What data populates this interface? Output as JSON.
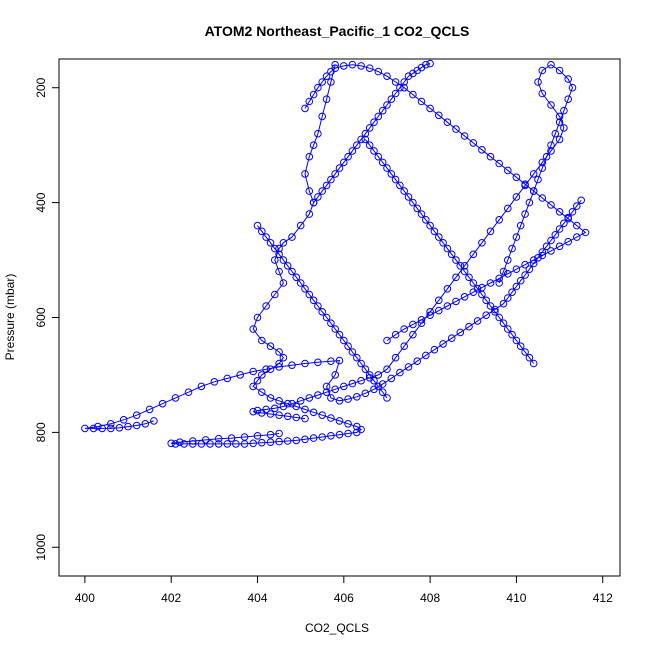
{
  "chart_data": {
    "type": "scatter",
    "title": "ATOM2 Northeast_Pacific_1 CO2_QCLS",
    "xlabel": "CO2_QCLS",
    "ylabel": "Pressure (mbar)",
    "xlim": [
      399.4,
      412.4
    ],
    "ylim": [
      1050,
      150
    ],
    "y_reversed": true,
    "x_ticks": [
      400,
      402,
      404,
      406,
      408,
      410,
      412
    ],
    "y_ticks": [
      200,
      400,
      600,
      800,
      1000
    ],
    "grid": false,
    "legend": "none",
    "marker": "open-circle",
    "connect_points": true,
    "color": "#0000ff",
    "series": [
      {
        "x": [
          405.8,
          405.7,
          405.6,
          405.5,
          405.4,
          405.3,
          405.2,
          405.1,
          405.2,
          405.3,
          405.2,
          405.0,
          404.8,
          404.6,
          404.5,
          404.4,
          404.5,
          404.6,
          404.4,
          404.2,
          404.0,
          403.9,
          404.1,
          404.3,
          404.5,
          404.6,
          404.5,
          404.3,
          404.1,
          404.0,
          403.9,
          404.1,
          404.3,
          404.5,
          404.7,
          404.9,
          405.1,
          405.3,
          405.5,
          405.7,
          405.9,
          406.1,
          406.3,
          406.4,
          406.3,
          406.1,
          405.9,
          405.7,
          405.5,
          405.3,
          405.1,
          404.9,
          404.7,
          404.5,
          404.3,
          404.1,
          403.9,
          403.7,
          403.5,
          403.3,
          403.1,
          402.9,
          402.7,
          402.5,
          402.3,
          402.1,
          402.0,
          402.2,
          402.5,
          402.8,
          403.1,
          403.4,
          403.7,
          404.0,
          404.3,
          404.5
        ],
        "y": [
          160,
          190,
          220,
          250,
          280,
          300,
          320,
          350,
          380,
          400,
          420,
          440,
          460,
          470,
          480,
          500,
          520,
          540,
          560,
          580,
          600,
          620,
          640,
          650,
          660,
          670,
          680,
          690,
          700,
          710,
          720,
          730,
          740,
          745,
          750,
          755,
          760,
          765,
          770,
          775,
          780,
          785,
          790,
          795,
          800,
          802,
          804,
          806,
          808,
          810,
          812,
          814,
          815,
          816,
          817,
          818,
          819,
          820,
          820,
          820,
          820,
          820,
          820,
          820,
          820,
          820,
          819,
          817,
          815,
          813,
          811,
          810,
          808,
          806,
          804,
          802
        ]
      },
      {
        "x": [
          401.6,
          401.4,
          401.2,
          401.0,
          400.8,
          400.6,
          400.4,
          400.2,
          400.0,
          400.3,
          400.6,
          400.9,
          401.2,
          401.5,
          401.8,
          402.1,
          402.4,
          402.7,
          403.0,
          403.3,
          403.6,
          403.9,
          404.2,
          404.5,
          404.8,
          405.1,
          405.4,
          405.7,
          405.9,
          405.8,
          405.6,
          405.7,
          405.9,
          406.1,
          406.3,
          406.5,
          406.7,
          406.9,
          407.1,
          407.3,
          407.5,
          407.7,
          407.9,
          408.1,
          408.3,
          408.5,
          408.7,
          408.9,
          409.1,
          409.3,
          409.5,
          409.7,
          409.8,
          409.9,
          410.0,
          410.1,
          410.2,
          410.3,
          410.4,
          410.5,
          410.6,
          410.7,
          410.8,
          410.9,
          411.0,
          411.1,
          411.2,
          411.3,
          411.4,
          411.5
        ],
        "y": [
          780,
          785,
          788,
          790,
          792,
          793,
          793,
          793,
          793,
          790,
          785,
          778,
          770,
          760,
          750,
          740,
          730,
          720,
          712,
          706,
          700,
          694,
          690,
          686,
          683,
          680,
          678,
          676,
          675,
          700,
          720,
          740,
          745,
          742,
          738,
          732,
          725,
          716,
          706,
          696,
          686,
          676,
          666,
          656,
          646,
          636,
          626,
          616,
          606,
          596,
          586,
          576,
          566,
          556,
          546,
          536,
          526,
          516,
          506,
          496,
          486,
          476,
          466,
          456,
          446,
          436,
          426,
          416,
          406,
          396
        ]
      },
      {
        "x": [
          409.6,
          409.7,
          409.8,
          409.9,
          410.0,
          410.1,
          410.2,
          410.3,
          410.4,
          410.5,
          410.6,
          410.7,
          410.8,
          410.9,
          411.0,
          411.1,
          411.2,
          411.3,
          411.2,
          411.0,
          410.8,
          410.6,
          410.5,
          410.6,
          410.8,
          411.0,
          411.1,
          411.0,
          410.8,
          410.6,
          410.4,
          410.2,
          410.0,
          409.8,
          409.6,
          409.4,
          409.2,
          409.0,
          408.8,
          408.6,
          408.4,
          408.2,
          408.0,
          407.8,
          407.6,
          407.4,
          407.2,
          407.0,
          406.8,
          406.6,
          406.4,
          406.2,
          406.0,
          405.8,
          405.6,
          405.4,
          405.2,
          405.0,
          404.8,
          404.6,
          404.4,
          404.2,
          404.0,
          403.9,
          404.1,
          404.3,
          404.5,
          404.7,
          404.9,
          405.1
        ],
        "y": [
          540,
          520,
          500,
          480,
          460,
          440,
          420,
          400,
          380,
          360,
          340,
          320,
          300,
          280,
          260,
          240,
          220,
          200,
          185,
          170,
          160,
          170,
          190,
          210,
          230,
          250,
          270,
          290,
          310,
          330,
          350,
          370,
          390,
          410,
          430,
          450,
          470,
          490,
          510,
          530,
          550,
          570,
          590,
          610,
          630,
          650,
          670,
          690,
          700,
          705,
          710,
          715,
          720,
          725,
          730,
          735,
          740,
          745,
          750,
          755,
          758,
          760,
          762,
          764,
          766,
          768,
          770,
          772,
          774,
          776
        ]
      },
      {
        "x": [
          407.0,
          407.2,
          407.4,
          407.6,
          407.8,
          408.0,
          408.2,
          408.4,
          408.6,
          408.8,
          409.0,
          409.2,
          409.4,
          409.6,
          409.8,
          410.0,
          410.2,
          410.4,
          410.6,
          410.8,
          411.0,
          411.2,
          411.4,
          411.6,
          411.4,
          411.2,
          411.0,
          410.8,
          410.6,
          410.4,
          410.2,
          410.0,
          409.8,
          409.6,
          409.4,
          409.2,
          409.0,
          408.8,
          408.6,
          408.4,
          408.2,
          408.0,
          407.8,
          407.6,
          407.4,
          407.2,
          407.0,
          406.8,
          406.6,
          406.4,
          406.2,
          406.0,
          405.8,
          405.7,
          405.6,
          405.5,
          405.4,
          405.3,
          405.2,
          405.1
        ],
        "y": [
          640,
          630,
          620,
          612,
          604,
          596,
          588,
          580,
          572,
          564,
          556,
          548,
          540,
          532,
          524,
          516,
          508,
          500,
          492,
          484,
          476,
          468,
          460,
          452,
          440,
          428,
          416,
          404,
          392,
          380,
          368,
          356,
          344,
          332,
          320,
          308,
          296,
          284,
          272,
          260,
          248,
          236,
          224,
          212,
          200,
          190,
          180,
          172,
          166,
          162,
          160,
          162,
          166,
          172,
          180,
          190,
          200,
          212,
          224,
          236
        ]
      },
      {
        "x": [
          406.5,
          406.6,
          406.7,
          406.8,
          406.9,
          407.0,
          407.1,
          407.2,
          407.3,
          407.4,
          407.5,
          407.6,
          407.7,
          407.8,
          407.9,
          408.0,
          408.1,
          408.2,
          408.3,
          408.4,
          408.5,
          408.6,
          408.7,
          408.8,
          408.9,
          409.0,
          409.1,
          409.2,
          409.3,
          409.4,
          409.5,
          409.6,
          409.7,
          409.8,
          409.9,
          410.0,
          410.1,
          410.2,
          410.3,
          410.4
        ],
        "y": [
          290,
          300,
          310,
          320,
          330,
          340,
          350,
          360,
          370,
          380,
          390,
          400,
          410,
          420,
          430,
          440,
          450,
          460,
          470,
          480,
          490,
          500,
          510,
          520,
          530,
          540,
          550,
          560,
          570,
          580,
          590,
          600,
          610,
          620,
          630,
          640,
          650,
          660,
          670,
          680
        ]
      },
      {
        "x": [
          404.0,
          404.1,
          404.2,
          404.3,
          404.4,
          404.5,
          404.6,
          404.7,
          404.8,
          404.9,
          405.0,
          405.1,
          405.2,
          405.3,
          405.4,
          405.5,
          405.6,
          405.7,
          405.8,
          405.9,
          406.0,
          406.1,
          406.2,
          406.3,
          406.4,
          406.5,
          406.6,
          406.7,
          406.8,
          406.9,
          407.0
        ],
        "y": [
          440,
          450,
          460,
          470,
          480,
          490,
          500,
          510,
          520,
          530,
          540,
          550,
          560,
          570,
          580,
          590,
          600,
          610,
          620,
          630,
          640,
          650,
          660,
          670,
          680,
          690,
          700,
          710,
          720,
          730,
          740
        ]
      },
      {
        "x": [
          405.3,
          405.4,
          405.5,
          405.6,
          405.7,
          405.8,
          405.9,
          406.0,
          406.1,
          406.2,
          406.3,
          406.4,
          406.5,
          406.6,
          406.7,
          406.8,
          406.9,
          407.0,
          407.1,
          407.2,
          407.3,
          407.4,
          407.5,
          407.6,
          407.7,
          407.8,
          407.9,
          408.0
        ],
        "y": [
          400,
          390,
          380,
          370,
          360,
          350,
          340,
          330,
          320,
          310,
          300,
          290,
          280,
          270,
          260,
          250,
          240,
          230,
          220,
          210,
          200,
          190,
          180,
          175,
          170,
          165,
          160,
          158
        ]
      }
    ]
  }
}
